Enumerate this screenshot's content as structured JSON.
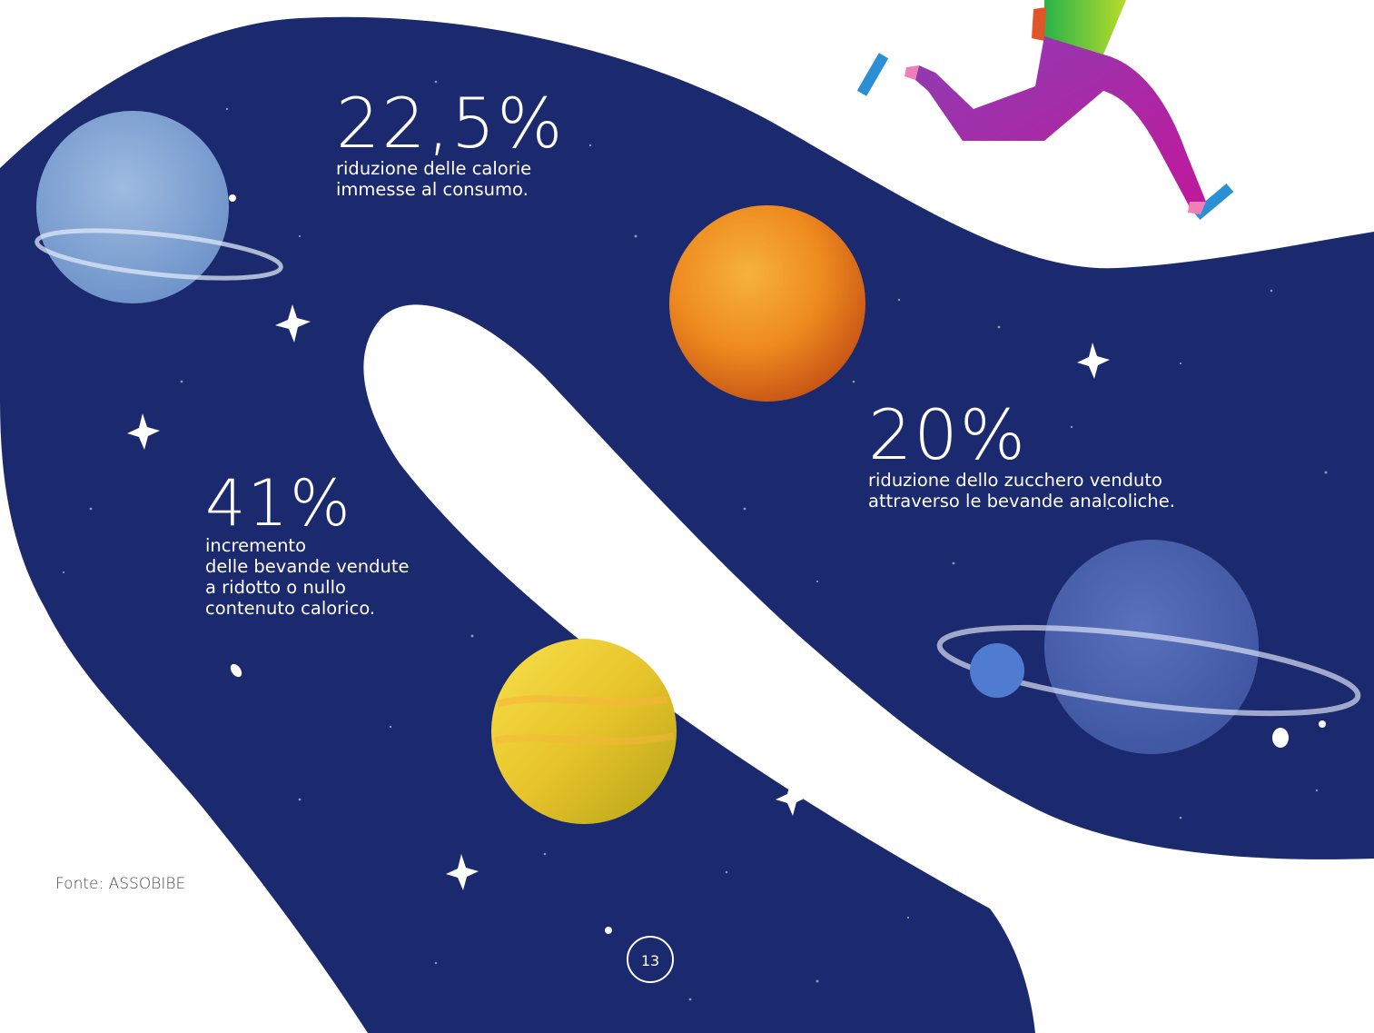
{
  "stats": [
    {
      "value": "22,5%",
      "description": "riduzione delle calorie\nimmesse al consumo."
    },
    {
      "value": "20%",
      "description": "riduzione dello zucchero venduto\nattraverso le bevande analcoliche."
    },
    {
      "value": "41%",
      "description": "incremento\ndelle bevande vendute\na ridotto o nullo\ncontenuto calorico."
    }
  ],
  "source": "Fonte: ASSOBIBE",
  "page_number": "13",
  "colors": {
    "space_background": "#1b2a6e",
    "page_background": "#ffffff",
    "text": "#ffffff",
    "source_text": "#4a4a4a"
  }
}
